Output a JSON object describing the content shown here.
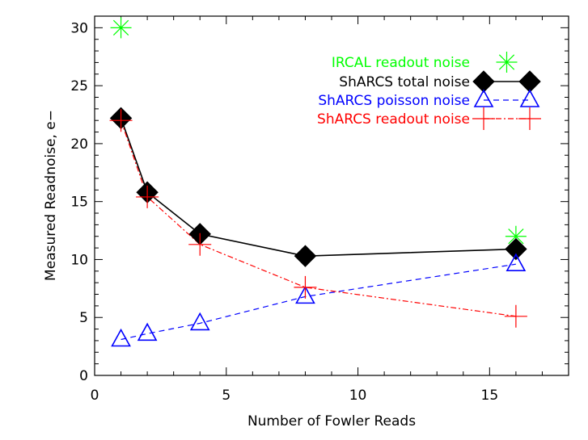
{
  "chart_data": {
    "type": "line",
    "xlabel": "Number of Fowler Reads",
    "ylabel": "Measured Readnoise, e−",
    "xlim": [
      0,
      18
    ],
    "ylim": [
      0,
      31
    ],
    "xticks": [
      0,
      5,
      10,
      15
    ],
    "yticks": [
      0,
      5,
      10,
      15,
      20,
      25,
      30
    ],
    "series": [
      {
        "name": "IRCAL readout noise",
        "color": "#00ff00",
        "marker": "asterisk",
        "line": "none",
        "x": [
          1,
          16
        ],
        "y": [
          30,
          12
        ]
      },
      {
        "name": "ShARCS total noise",
        "color": "#000000",
        "marker": "diamond",
        "line": "solid",
        "x": [
          1,
          2,
          4,
          8,
          16
        ],
        "y": [
          22.2,
          15.8,
          12.2,
          10.3,
          10.9
        ]
      },
      {
        "name": "ShARCS poisson noise",
        "color": "#0000ff",
        "marker": "triangle",
        "line": "dashed",
        "x": [
          1,
          2,
          4,
          8,
          16
        ],
        "y": [
          3.1,
          3.6,
          4.5,
          6.8,
          9.6
        ]
      },
      {
        "name": "ShARCS readout noise",
        "color": "#ff0000",
        "marker": "plus",
        "line": "dashdot",
        "x": [
          1,
          2,
          4,
          8,
          16
        ],
        "y": [
          22.0,
          15.4,
          11.3,
          7.6,
          5.1
        ]
      }
    ],
    "legend": "top-right"
  }
}
